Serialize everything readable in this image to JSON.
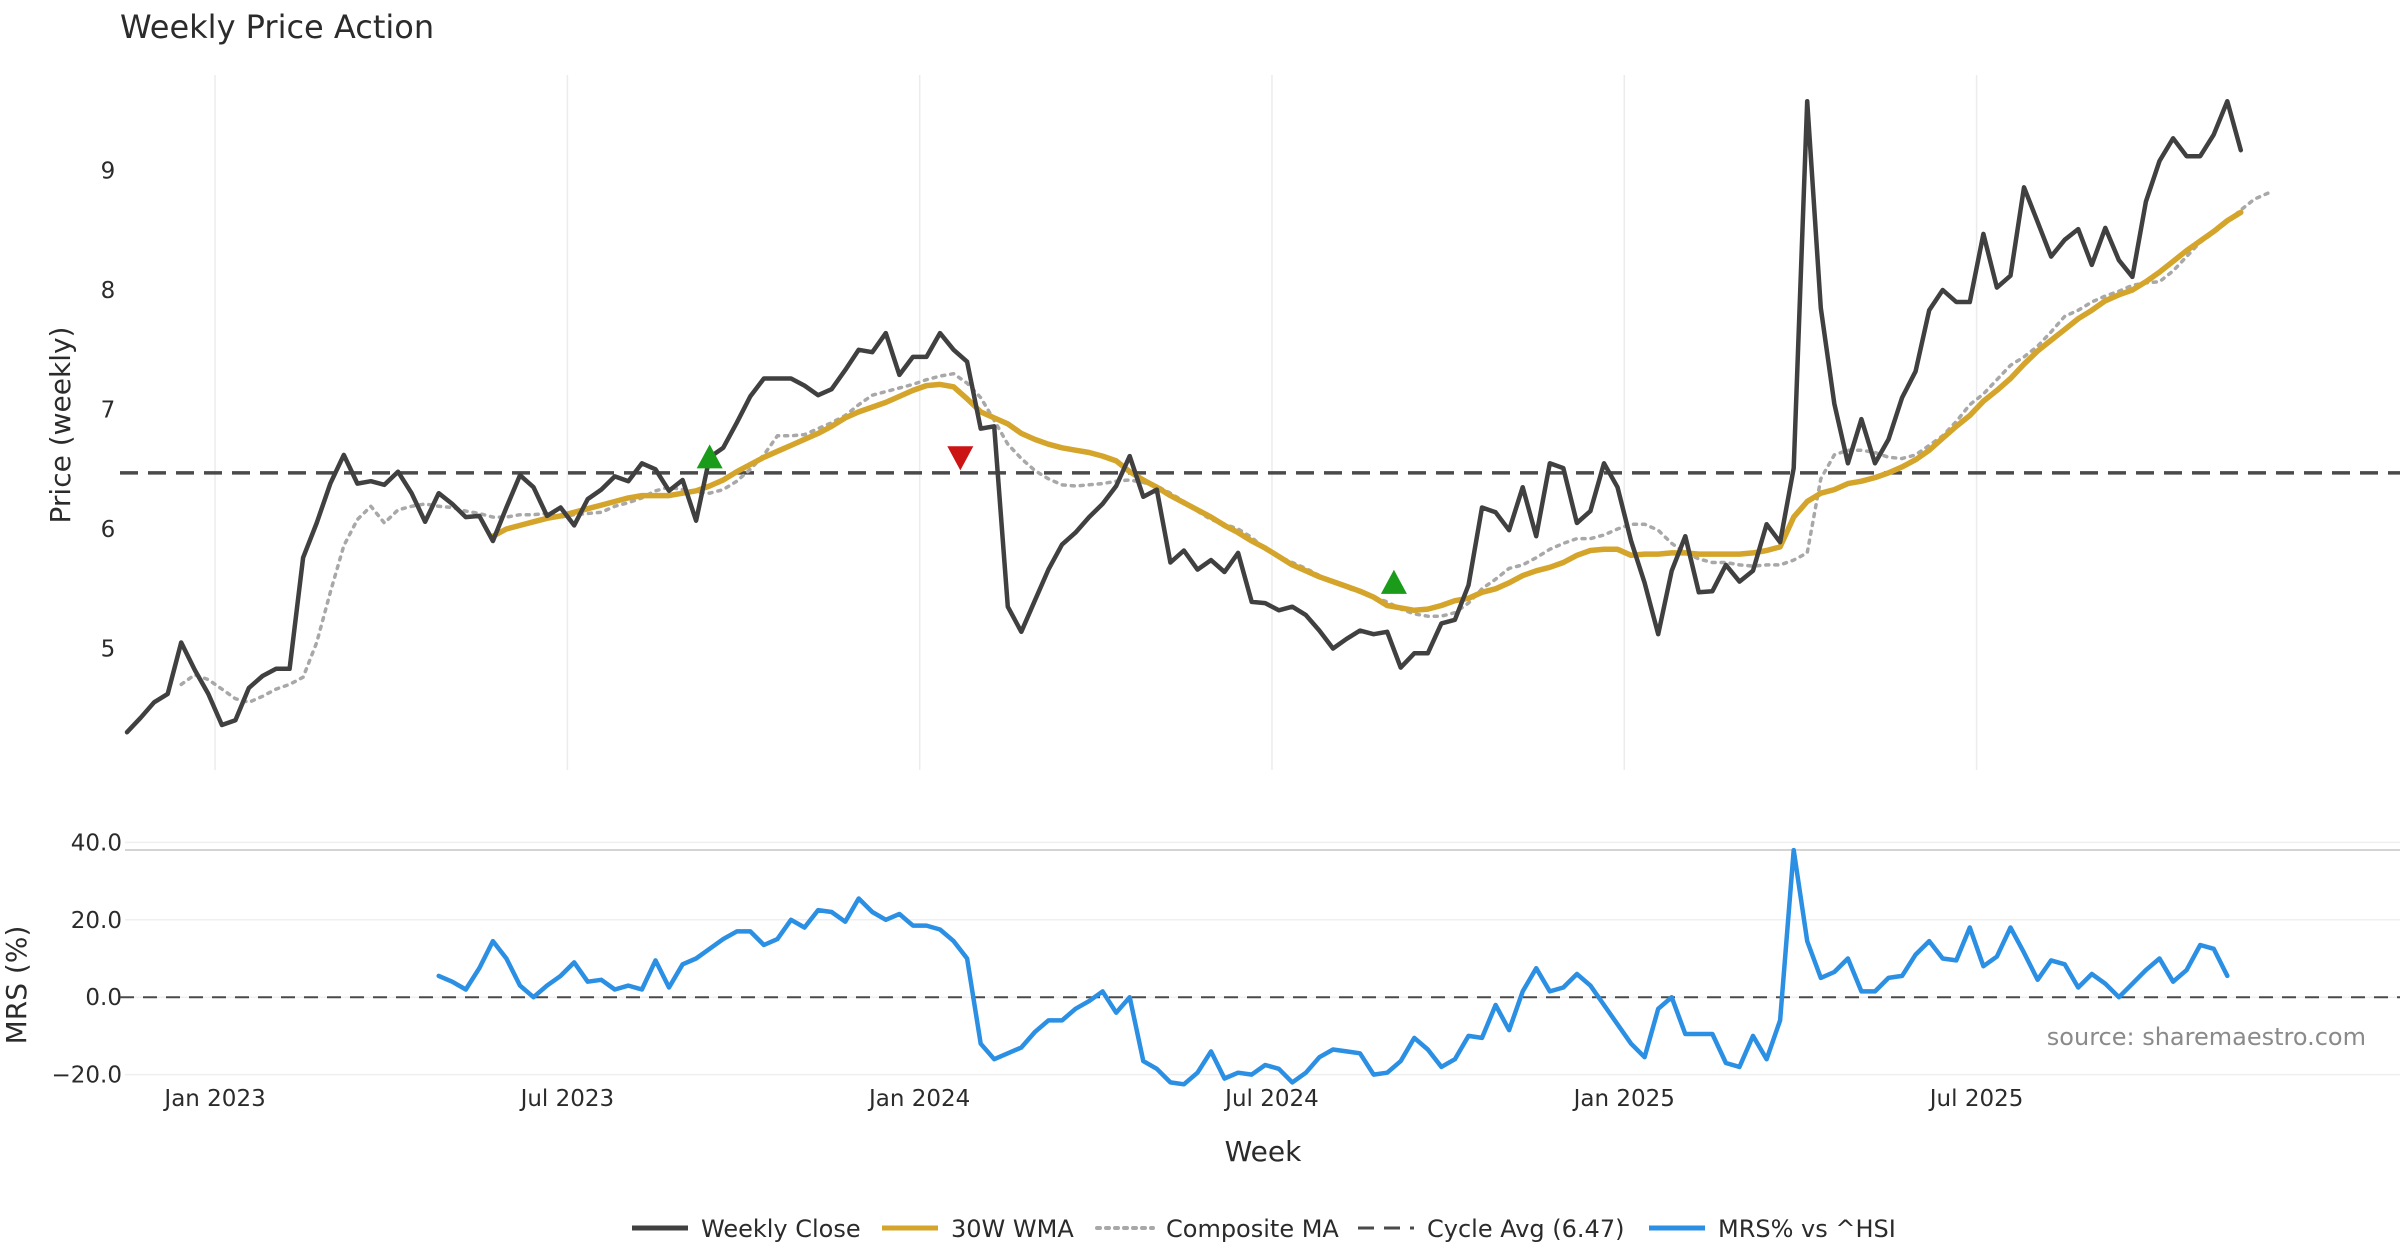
{
  "chart_data": [
    {
      "type": "line",
      "title": "Weekly Price Action",
      "xlabel": "",
      "ylabel": "Price (weekly)",
      "x_ticks": [
        "Jan 2023",
        "Jul 2023",
        "Jan 2024",
        "Jul 2024",
        "Jan 2025",
        "Jul 2025"
      ],
      "y_ticks": [
        "5",
        "6",
        "7",
        "8",
        "9"
      ],
      "ylim": [
        4.0,
        9.9
      ],
      "x_range": [
        0,
        154
      ],
      "reference_line": {
        "name": "Cycle Avg (6.47)",
        "value": 6.47
      },
      "series": [
        {
          "name": "Weekly Close",
          "color": "#404040",
          "start": 0,
          "values": [
            4.3,
            4.42,
            4.55,
            4.62,
            5.05,
            4.82,
            4.62,
            4.36,
            4.4,
            4.67,
            4.77,
            4.83,
            4.83,
            5.76,
            6.05,
            6.38,
            6.62,
            6.38,
            6.4,
            6.37,
            6.48,
            6.3,
            6.06,
            6.3,
            6.21,
            6.1,
            6.11,
            5.9,
            6.18,
            6.45,
            6.35,
            6.11,
            6.18,
            6.03,
            6.25,
            6.33,
            6.44,
            6.4,
            6.55,
            6.5,
            6.32,
            6.41,
            6.07,
            6.6,
            6.68,
            6.89,
            7.11,
            7.26,
            7.26,
            7.26,
            7.2,
            7.12,
            7.17,
            7.33,
            7.5,
            7.48,
            7.64,
            7.29,
            7.44,
            7.44,
            7.64,
            7.5,
            7.4,
            6.84,
            6.86,
            5.35,
            5.14,
            5.4,
            5.66,
            5.87,
            5.97,
            6.1,
            6.21,
            6.36,
            6.61,
            6.27,
            6.33,
            5.72,
            5.82,
            5.66,
            5.74,
            5.64,
            5.8,
            5.39,
            5.38,
            5.32,
            5.35,
            5.28,
            5.15,
            5.0,
            5.08,
            5.15,
            5.12,
            5.14,
            4.84,
            4.96,
            4.96,
            5.21,
            5.24,
            5.53,
            6.18,
            6.14,
            5.99,
            6.35,
            5.94,
            6.55,
            6.51,
            6.05,
            6.15,
            6.55,
            6.35,
            5.9,
            5.55,
            5.12,
            5.65,
            5.94,
            5.47,
            5.48,
            5.7,
            5.56,
            5.65,
            6.04,
            5.89,
            6.51,
            9.58,
            7.85,
            7.05,
            6.55,
            6.92,
            6.55,
            6.75,
            7.1,
            7.32,
            7.83,
            8.0,
            7.9,
            7.9,
            8.47,
            8.02,
            8.12,
            8.86,
            8.57,
            8.28,
            8.42,
            8.51,
            8.21,
            8.52,
            8.25,
            8.11,
            8.74,
            9.08,
            9.27,
            9.12,
            9.12,
            9.3,
            9.58,
            9.17
          ]
        },
        {
          "name": "30W WMA",
          "color": "#d4a52a",
          "start": 27,
          "values": [
            5.94,
            6.0,
            6.03,
            6.06,
            6.09,
            6.11,
            6.14,
            6.17,
            6.2,
            6.23,
            6.26,
            6.28,
            6.28,
            6.28,
            6.3,
            6.32,
            6.36,
            6.41,
            6.48,
            6.54,
            6.6,
            6.65,
            6.7,
            6.75,
            6.8,
            6.86,
            6.93,
            6.98,
            7.02,
            7.06,
            7.11,
            7.16,
            7.2,
            7.21,
            7.19,
            7.09,
            6.98,
            6.93,
            6.88,
            6.8,
            6.75,
            6.71,
            6.68,
            6.66,
            6.64,
            6.61,
            6.57,
            6.48,
            6.41,
            6.35,
            6.28,
            6.22,
            6.16,
            6.1,
            6.03,
            5.97,
            5.9,
            5.84,
            5.77,
            5.7,
            5.65,
            5.6,
            5.56,
            5.52,
            5.48,
            5.43,
            5.36,
            5.34,
            5.32,
            5.33,
            5.36,
            5.4,
            5.42,
            5.47,
            5.5,
            5.55,
            5.61,
            5.65,
            5.68,
            5.72,
            5.78,
            5.82,
            5.83,
            5.83,
            5.78,
            5.79,
            5.79,
            5.8,
            5.8,
            5.79,
            5.79,
            5.79,
            5.79,
            5.8,
            5.82,
            5.85,
            6.1,
            6.23,
            6.3,
            6.33,
            6.38,
            6.4,
            6.43,
            6.47,
            6.52,
            6.58,
            6.66,
            6.76,
            6.86,
            6.95,
            7.07,
            7.16,
            7.26,
            7.38,
            7.49,
            7.58,
            7.67,
            7.76,
            7.83,
            7.91,
            7.96,
            8.0,
            8.07,
            8.15,
            8.24,
            8.33,
            8.41,
            8.49,
            8.58,
            8.65
          ]
        },
        {
          "name": "Composite MA",
          "color": "#a8a8a8",
          "start": 4,
          "values": [
            4.7,
            4.78,
            4.74,
            4.66,
            4.58,
            4.55,
            4.6,
            4.66,
            4.7,
            4.76,
            5.05,
            5.47,
            5.86,
            6.08,
            6.19,
            6.05,
            6.16,
            6.19,
            6.21,
            6.19,
            6.18,
            6.15,
            6.13,
            6.1,
            6.1,
            6.12,
            6.12,
            6.13,
            6.1,
            6.12,
            6.13,
            6.14,
            6.19,
            6.22,
            6.26,
            6.32,
            6.35,
            6.33,
            6.31,
            6.3,
            6.33,
            6.4,
            6.5,
            6.62,
            6.78,
            6.78,
            6.79,
            6.84,
            6.89,
            6.95,
            7.04,
            7.12,
            7.15,
            7.18,
            7.21,
            7.25,
            7.28,
            7.3,
            7.22,
            7.1,
            6.91,
            6.71,
            6.59,
            6.49,
            6.42,
            6.37,
            6.36,
            6.37,
            6.38,
            6.4,
            6.41,
            6.39,
            6.36,
            6.3,
            6.23,
            6.15,
            6.08,
            6.04,
            6.0,
            5.93,
            5.83,
            5.77,
            5.72,
            5.67,
            5.61,
            5.56,
            5.51,
            5.47,
            5.43,
            5.39,
            5.33,
            5.29,
            5.27,
            5.27,
            5.3,
            5.38,
            5.5,
            5.58,
            5.67,
            5.7,
            5.76,
            5.83,
            5.88,
            5.92,
            5.92,
            5.95,
            6.0,
            6.04,
            6.04,
            5.99,
            5.88,
            5.8,
            5.75,
            5.72,
            5.72,
            5.7,
            5.69,
            5.7,
            5.7,
            5.74,
            5.8,
            6.42,
            6.62,
            6.66,
            6.66,
            6.64,
            6.6,
            6.59,
            6.62,
            6.7,
            6.78,
            6.9,
            7.04,
            7.13,
            7.25,
            7.37,
            7.44,
            7.53,
            7.65,
            7.78,
            7.83,
            7.9,
            7.95,
            7.99,
            8.04,
            8.06,
            8.07,
            8.16,
            8.28,
            8.4,
            8.48,
            8.57,
            8.67,
            8.76,
            8.81
          ]
        }
      ],
      "markers": [
        {
          "type": "buy",
          "symbol": "triangle-up",
          "color": "#1a9c1a",
          "x": 43,
          "y": 6.6
        },
        {
          "type": "sell",
          "symbol": "triangle-down",
          "color": "#cc1414",
          "x": 61.5,
          "y": 6.6
        },
        {
          "type": "buy",
          "symbol": "triangle-up",
          "color": "#1a9c1a",
          "x": 93.5,
          "y": 5.55
        }
      ]
    },
    {
      "type": "line",
      "xlabel": "Week",
      "ylabel": "MRS (%)",
      "x_ticks": [
        "Jan 2023",
        "Jul 2023",
        "Jan 2024",
        "Jul 2024",
        "Jan 2025",
        "Jul 2025"
      ],
      "y_ticks": [
        "40.0",
        "20.0",
        "0.0",
        "−20.0"
      ],
      "ylim": [
        -25,
        45
      ],
      "x_range": [
        0,
        154
      ],
      "zero_line": 0,
      "series": [
        {
          "name": "MRS% vs ^HSI",
          "color": "#2b8fe3",
          "start": 23,
          "values": [
            5.5,
            4.0,
            2.0,
            7.5,
            14.5,
            10.0,
            3.0,
            0.0,
            3.0,
            5.5,
            9.0,
            4.0,
            4.5,
            2.0,
            3.0,
            2.0,
            9.5,
            2.5,
            8.5,
            10.0,
            12.5,
            15.0,
            17.0,
            17.0,
            13.5,
            15.0,
            20.0,
            18.0,
            22.5,
            22.0,
            19.5,
            25.5,
            22.0,
            20.0,
            21.5,
            18.5,
            18.5,
            17.5,
            14.5,
            10.0,
            -12.0,
            -16.0,
            -14.5,
            -13.0,
            -9.0,
            -6.0,
            -6.0,
            -3.0,
            -1.0,
            1.5,
            -4.0,
            0.0,
            -16.5,
            -18.5,
            -22.0,
            -22.5,
            -19.5,
            -14.0,
            -21.0,
            -19.5,
            -20.0,
            -17.5,
            -18.5,
            -22.0,
            -19.5,
            -15.5,
            -13.5,
            -14.0,
            -14.5,
            -20.0,
            -19.5,
            -16.5,
            -10.5,
            -13.5,
            -18.0,
            -16.0,
            -10.0,
            -10.5,
            -2.0,
            -8.5,
            1.5,
            7.5,
            1.5,
            2.5,
            6.0,
            3.0,
            -2.0,
            -7.0,
            -12.0,
            -15.5,
            -3.0,
            0.0,
            -9.5,
            -9.5,
            -9.5,
            -17.0,
            -18.0,
            -10.0,
            -16.0,
            -6.0,
            38.0,
            14.5,
            5.0,
            6.5,
            10.0,
            1.5,
            1.5,
            5.0,
            5.5,
            11.0,
            14.5,
            10.0,
            9.5,
            18.0,
            8.0,
            10.5,
            18.0,
            11.5,
            4.5,
            9.5,
            8.5,
            2.5,
            6.0,
            3.5,
            0.0,
            3.5,
            7.0,
            10.0,
            4.0,
            7.0,
            13.5,
            12.5,
            5.5
          ]
        }
      ]
    }
  ],
  "source": "source: sharemaestro.com",
  "legend": [
    {
      "label": "Weekly Close",
      "color": "#404040",
      "style": "solid"
    },
    {
      "label": "30W WMA",
      "color": "#d4a52a",
      "style": "solid"
    },
    {
      "label": "Composite MA",
      "color": "#a8a8a8",
      "style": "dotted"
    },
    {
      "label": "Cycle Avg (6.47)",
      "color": "#4a4a4a",
      "style": "dashed"
    },
    {
      "label": "MRS% vs ^HSI",
      "color": "#2b8fe3",
      "style": "solid"
    }
  ]
}
